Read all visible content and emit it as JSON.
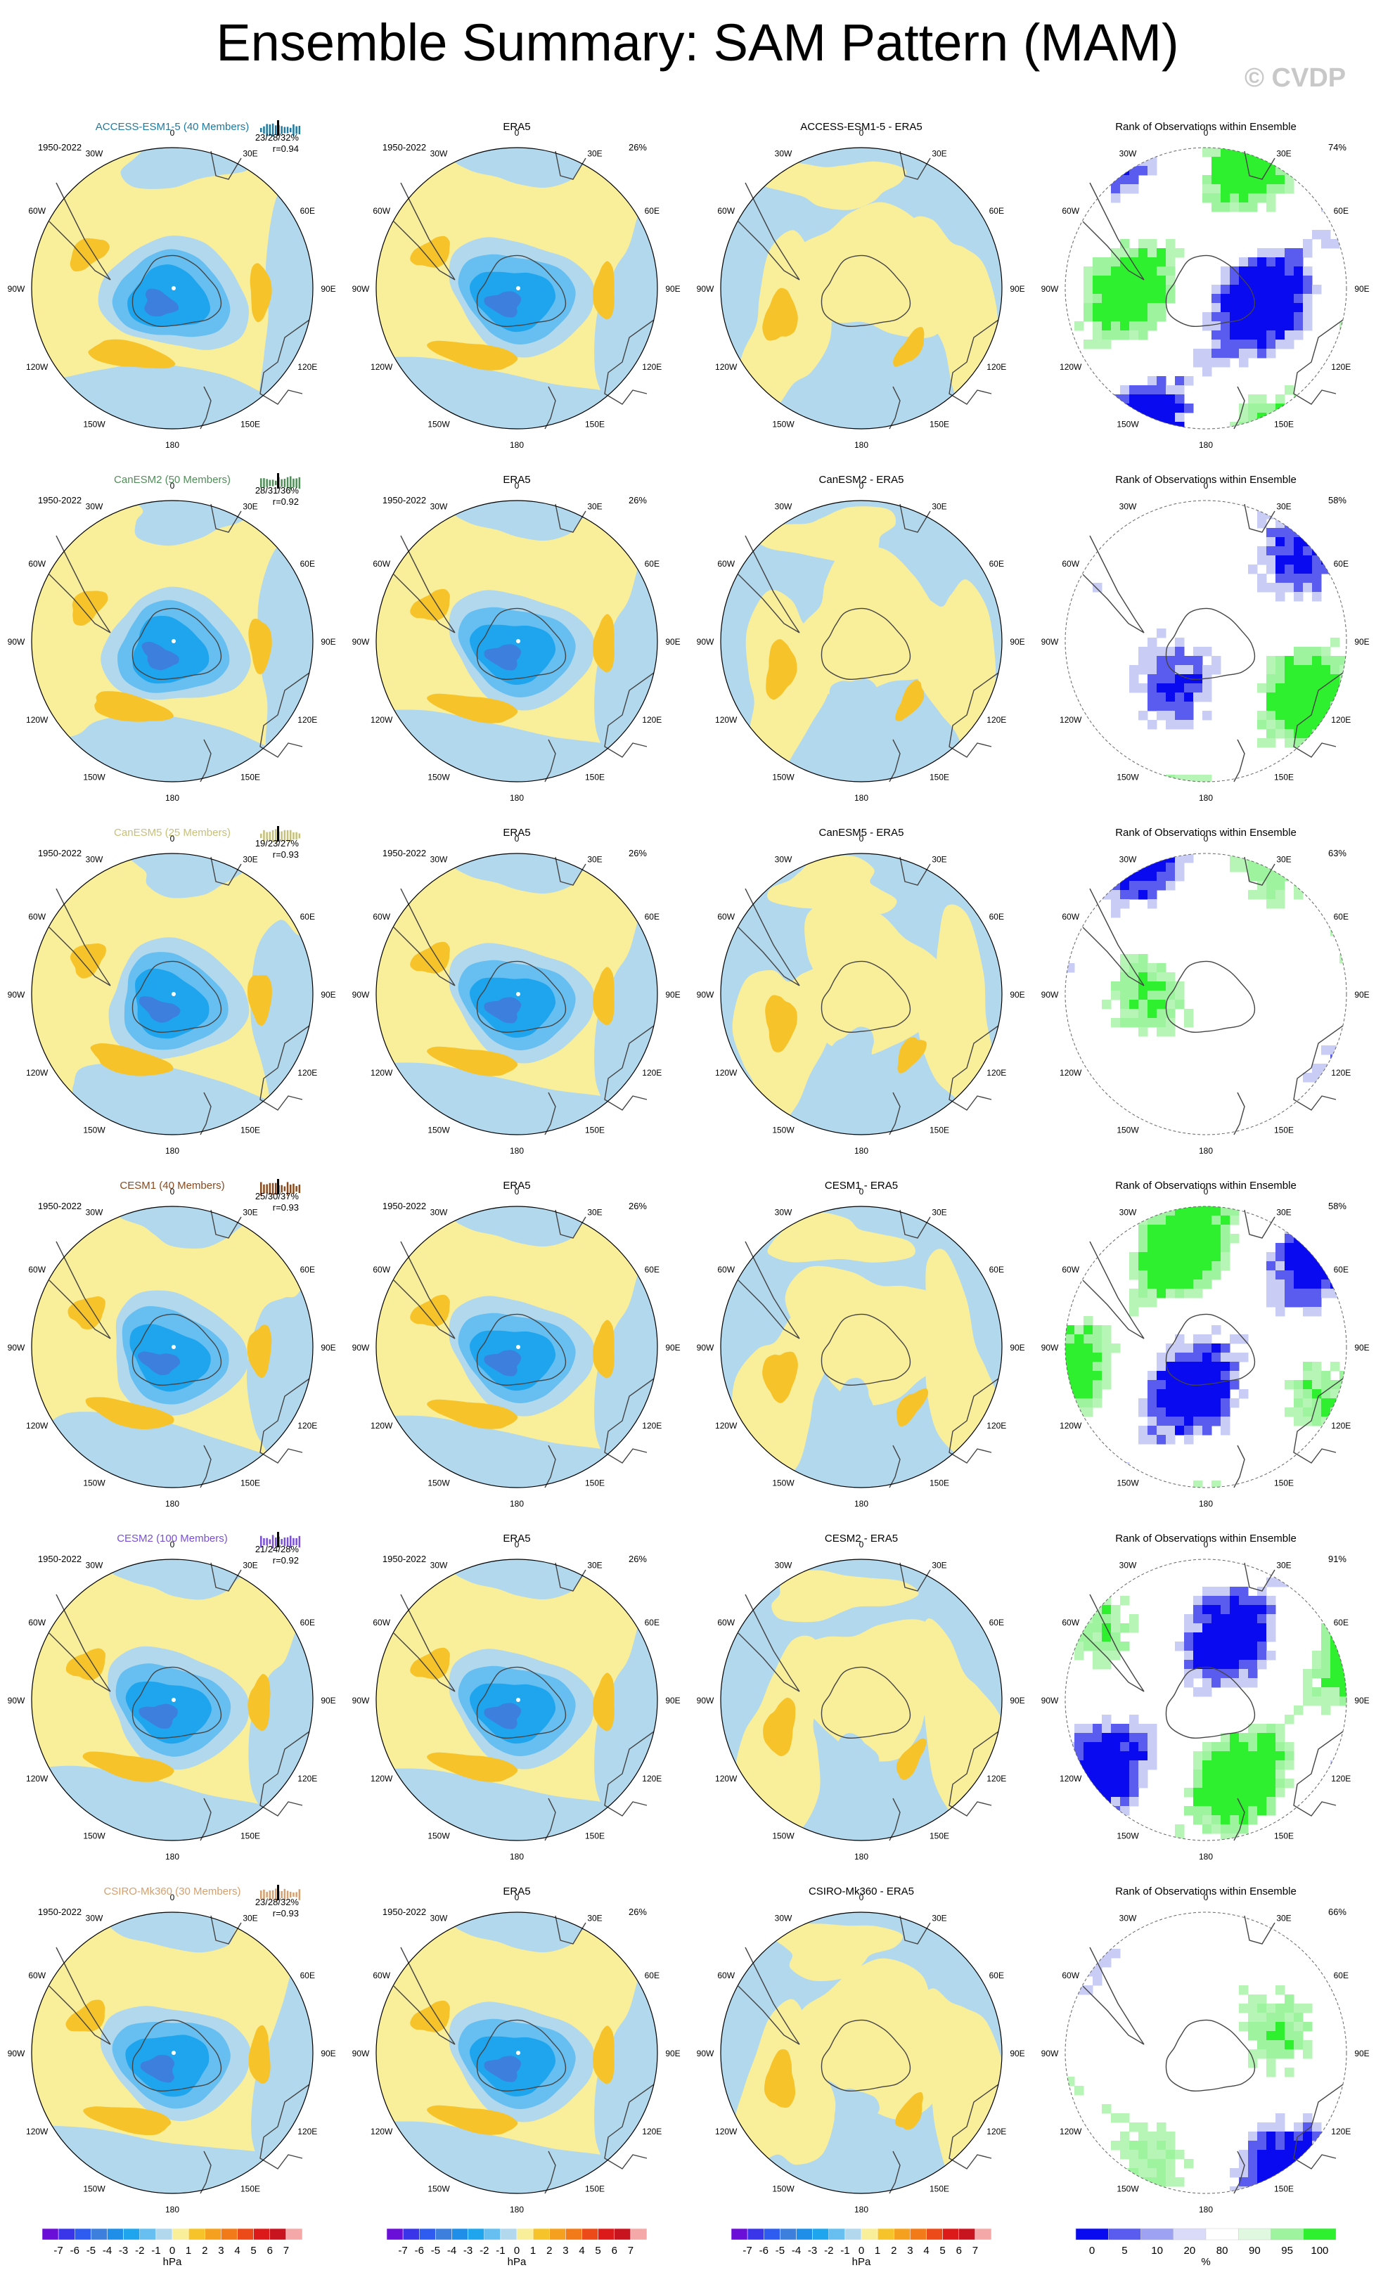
{
  "title": "Ensemble Summary: SAM Pattern (MAM)",
  "copyright": "© CVDP",
  "obs_name": "ERA5",
  "rank_title": "Rank of Observations within Ensemble",
  "period": "1950-2022",
  "lon_labels": [
    "0",
    "30E",
    "60E",
    "90E",
    "120E",
    "150E",
    "180",
    "150W",
    "120W",
    "90W",
    "60W",
    "30W"
  ],
  "colors": {
    "pos_light": "#f9ee9a",
    "pos_mid": "#f6c42a",
    "neg_light": "#b2d8ee",
    "neg_mid": "#66bff0",
    "neg_deep": "#1fa5ee",
    "neg_darker": "#3d7fdd",
    "rank_blue_dark": "#0a0af0",
    "rank_blue_light": "#c9cdf6",
    "rank_green": "#2ef02e",
    "rank_green_light": "#b6f5b6",
    "coast": "#444444"
  },
  "rows": [
    {
      "model": "ACCESS-ESM1-5",
      "members": "ACCESS-ESM1-5 (40 Members)",
      "color": "#1e7aa0",
      "stats": "23/28/32%",
      "r": "r=0.94",
      "obs_pct": "26%",
      "diff_title": "ACCESS-ESM1-5 - ERA5",
      "rank_pct": "74%"
    },
    {
      "model": "CanESM2",
      "members": "CanESM2 (50 Members)",
      "color": "#4f8f57",
      "stats": "28/31/36%",
      "r": "r=0.92",
      "obs_pct": "26%",
      "diff_title": "CanESM2 - ERA5",
      "rank_pct": "58%"
    },
    {
      "model": "CanESM5",
      "members": "CanESM5 (25 Members)",
      "color": "#c7c07a",
      "stats": "19/23/27%",
      "r": "r=0.93",
      "obs_pct": "26%",
      "diff_title": "CanESM5 - ERA5",
      "rank_pct": "63%"
    },
    {
      "model": "CESM1",
      "members": "CESM1 (40 Members)",
      "color": "#8b4a1e",
      "stats": "25/30/37%",
      "r": "r=0.93",
      "obs_pct": "26%",
      "diff_title": "CESM1 - ERA5",
      "rank_pct": "58%"
    },
    {
      "model": "CESM2",
      "members": "CESM2 (100 Members)",
      "color": "#7a4fd8",
      "stats": "21/24/28%",
      "r": "r=0.92",
      "obs_pct": "26%",
      "diff_title": "CESM2 - ERA5",
      "rank_pct": "91%"
    },
    {
      "model": "CSIRO-Mk360",
      "members": "CSIRO-Mk360 (30 Members)",
      "color": "#d4a070",
      "stats": "23/28/32%",
      "r": "r=0.93",
      "obs_pct": "26%",
      "diff_title": "CSIRO-Mk360 - ERA5",
      "rank_pct": "66%"
    }
  ],
  "chart_data": {
    "type": "heatmap",
    "title": "Ensemble Summary: SAM Pattern (MAM)",
    "projection": "south polar stereographic",
    "hpa_colorbar": {
      "label": "hPa",
      "ticks": [
        "-7",
        "-6",
        "-5",
        "-4",
        "-3",
        "-2",
        "-1",
        "0",
        "1",
        "2",
        "3",
        "4",
        "5",
        "6",
        "7"
      ],
      "colors": [
        "#6a0fd8",
        "#3a35e8",
        "#2e5cf0",
        "#3d7fdd",
        "#1f8ee8",
        "#1fa5ee",
        "#66bff0",
        "#b2d8ee",
        "#f9ee9a",
        "#f6c42a",
        "#f6a020",
        "#f27a18",
        "#ec4a18",
        "#dd1a1a",
        "#c8141e",
        "#f4a8a8"
      ]
    },
    "rank_colorbar": {
      "label": "%",
      "ticks": [
        "0",
        "5",
        "10",
        "20",
        "80",
        "90",
        "95",
        "100"
      ],
      "colors": [
        "#0a0af0",
        "#5a5cf0",
        "#9ea2f3",
        "#d9dbf8",
        "#ffffff",
        "#dff8df",
        "#9ef39e",
        "#2ef02e"
      ]
    },
    "panels": [
      {
        "row": "ACCESS-ESM1-5",
        "ensemble_pct": [
          23,
          28,
          32
        ],
        "pattern_corr": 0.94,
        "obs_pct": 26,
        "rank_pct": 74
      },
      {
        "row": "CanESM2",
        "ensemble_pct": [
          28,
          31,
          36
        ],
        "pattern_corr": 0.92,
        "obs_pct": 26,
        "rank_pct": 58
      },
      {
        "row": "CanESM5",
        "ensemble_pct": [
          19,
          23,
          27
        ],
        "pattern_corr": 0.93,
        "obs_pct": 26,
        "rank_pct": 63
      },
      {
        "row": "CESM1",
        "ensemble_pct": [
          25,
          30,
          37
        ],
        "pattern_corr": 0.93,
        "obs_pct": 26,
        "rank_pct": 58
      },
      {
        "row": "CESM2",
        "ensemble_pct": [
          21,
          24,
          28
        ],
        "pattern_corr": 0.92,
        "obs_pct": 26,
        "rank_pct": 91
      },
      {
        "row": "CSIRO-Mk360",
        "ensemble_pct": [
          23,
          28,
          32
        ],
        "pattern_corr": 0.93,
        "obs_pct": 26,
        "rank_pct": 66
      }
    ]
  }
}
